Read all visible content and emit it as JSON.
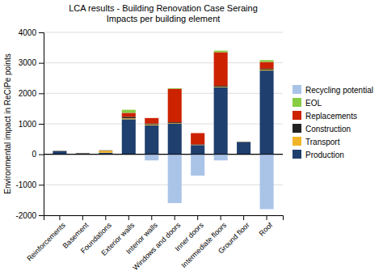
{
  "chart_data": {
    "type": "bar",
    "stacked": true,
    "title": "LCA results - Building Renovation Case Seraing\nImpacts per building element",
    "ylabel": "Environmental impact in ReCiPe points",
    "categories": [
      "Reinforcements",
      "Basement",
      "Foundations",
      "Exterior walls",
      "Interior walls",
      "Windows and doors",
      "Inner doors",
      "Intermediate floors",
      "Ground floor",
      "Roof"
    ],
    "series": [
      {
        "name": "Production",
        "color": "#1f3f6e",
        "values": [
          100,
          30,
          50,
          1150,
          950,
          1000,
          300,
          2200,
          400,
          2750
        ]
      },
      {
        "name": "Transport",
        "color": "#f0b428",
        "values": [
          5,
          5,
          70,
          30,
          30,
          20,
          5,
          20,
          5,
          30
        ]
      },
      {
        "name": "Construction",
        "color": "#222222",
        "values": [
          10,
          10,
          10,
          50,
          30,
          30,
          20,
          30,
          10,
          30
        ]
      },
      {
        "name": "Replacements",
        "color": "#cc2200",
        "values": [
          0,
          0,
          0,
          130,
          180,
          1100,
          370,
          1100,
          0,
          220
        ]
      },
      {
        "name": "EOL",
        "color": "#88cc44",
        "values": [
          0,
          0,
          0,
          100,
          0,
          20,
          0,
          50,
          0,
          60
        ]
      },
      {
        "name": "Recycling potential",
        "color": "#aac4e8",
        "values": [
          0,
          0,
          0,
          0,
          -200,
          -1600,
          -700,
          -200,
          0,
          -1800
        ]
      }
    ],
    "ylim": [
      -2000,
      4000
    ],
    "yticks": [
      -2000,
      -1000,
      0,
      1000,
      2000,
      3000,
      4000
    ],
    "grid": true,
    "legend": "right"
  }
}
